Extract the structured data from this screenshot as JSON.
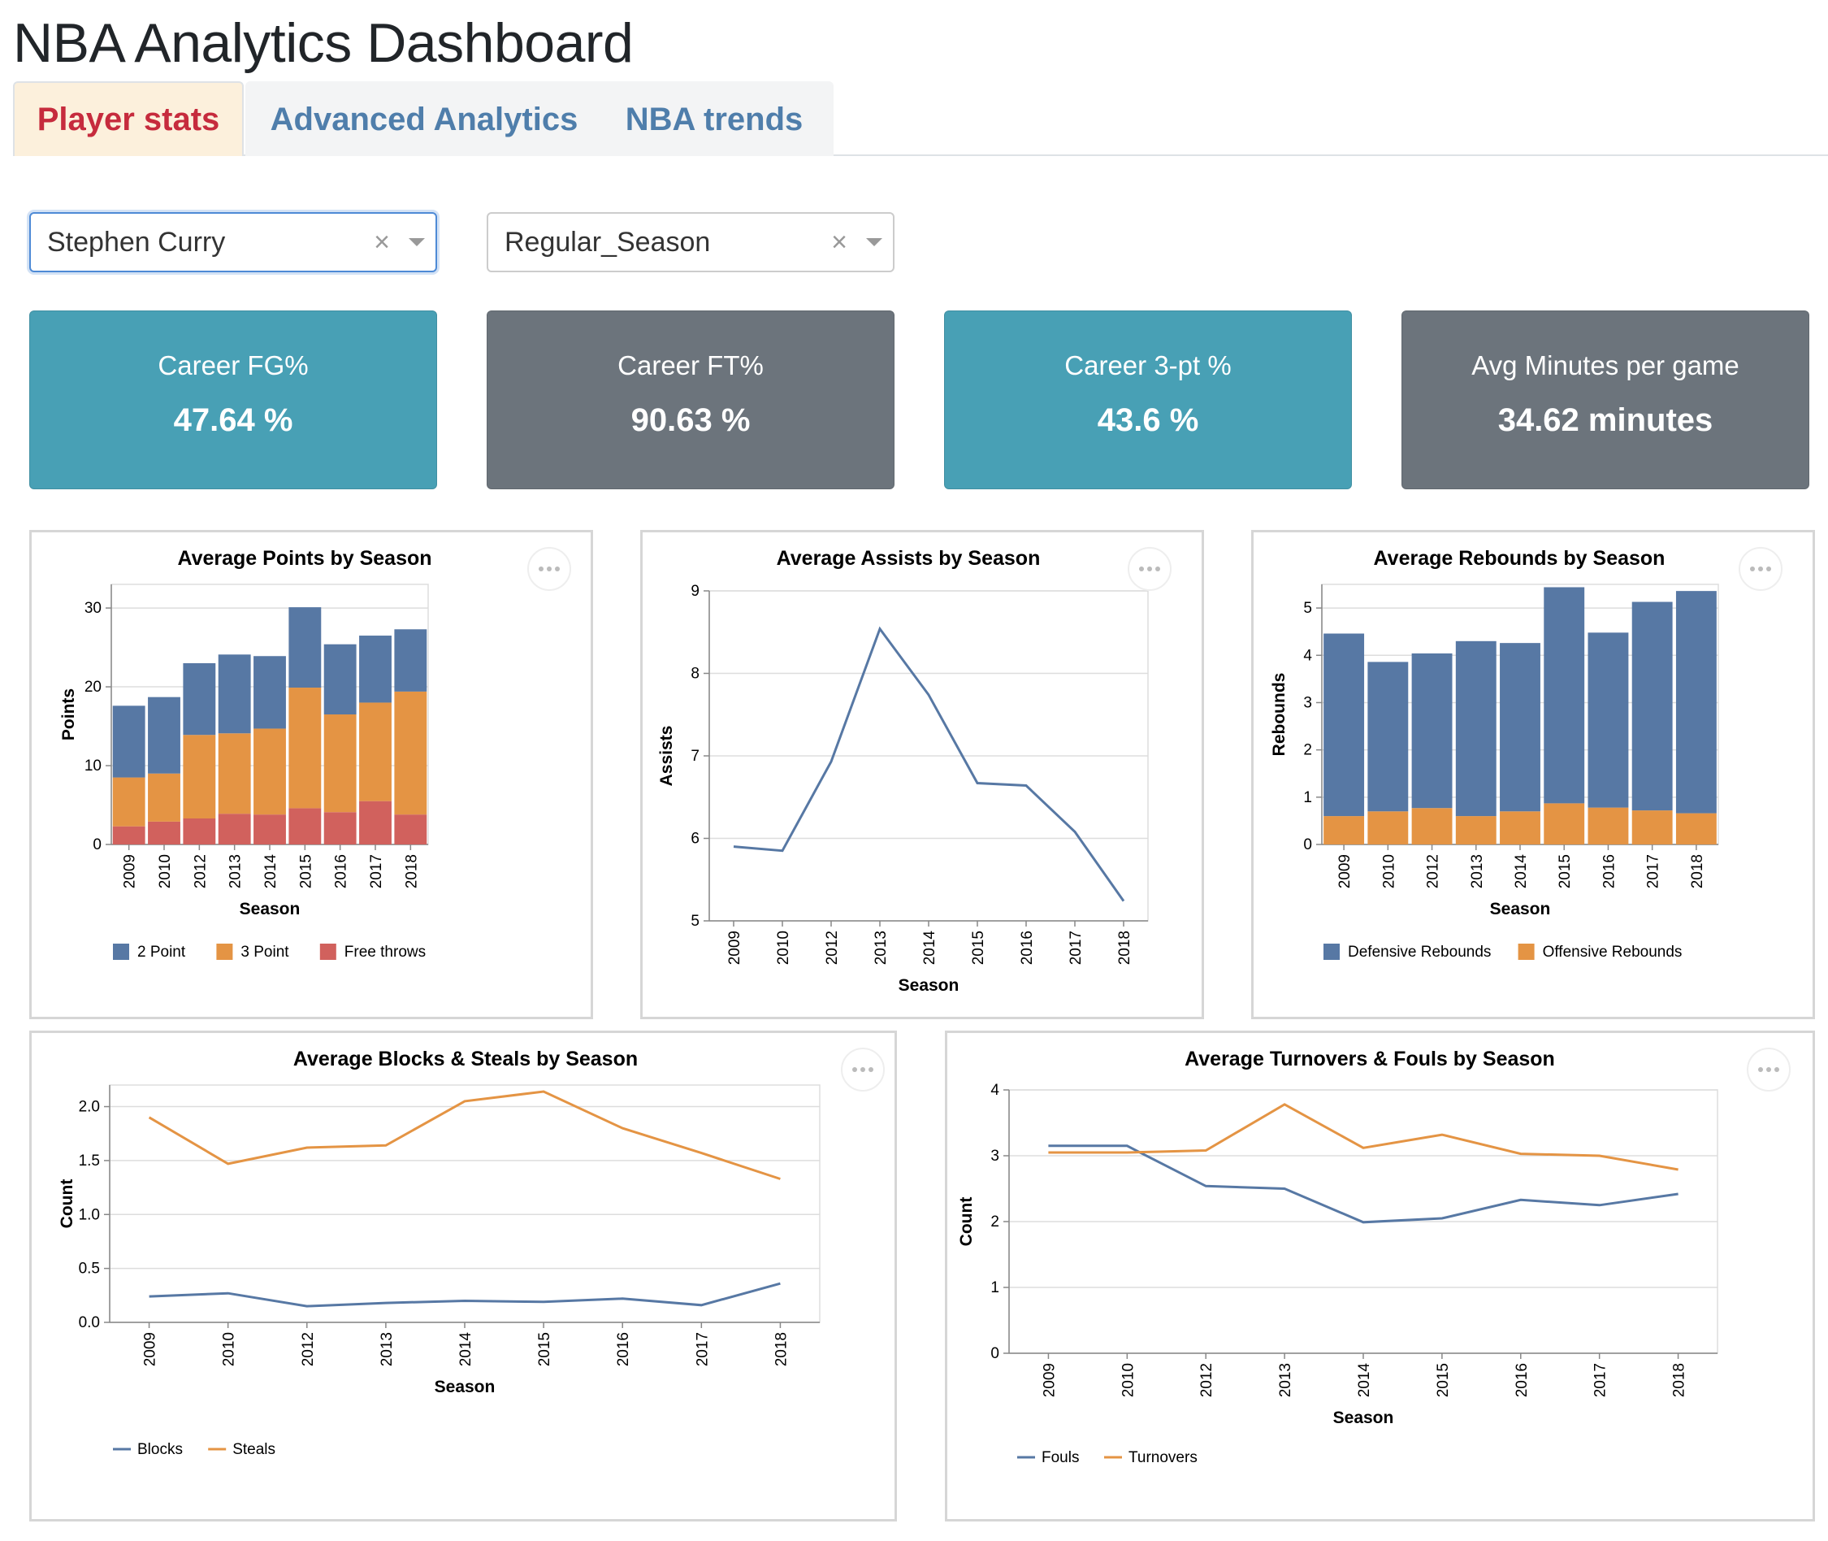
{
  "page_title": "NBA Analytics Dashboard",
  "tabs": [
    {
      "label": "Player stats",
      "active": true
    },
    {
      "label": "Advanced Analytics",
      "active": false
    },
    {
      "label": "NBA trends",
      "active": false
    }
  ],
  "filters": {
    "player": {
      "value": "Stephen Curry",
      "clear_icon": "×"
    },
    "season_type": {
      "value": "Regular_Season",
      "clear_icon": "×"
    }
  },
  "cards": [
    {
      "label": "Career FG%",
      "value": "47.64 %",
      "color": "#48a0b5"
    },
    {
      "label": "Career FT%",
      "value": "90.63 %",
      "color": "#6c747c"
    },
    {
      "label": "Career 3-pt %",
      "value": "43.6 %",
      "color": "#48a0b5"
    },
    {
      "label": "Avg Minutes per game",
      "value": "34.62 minutes",
      "color": "#6c747c"
    }
  ],
  "colors": {
    "blue": "#5778a4",
    "orange": "#e49444",
    "red": "#d1615d"
  },
  "chart_data": [
    {
      "id": "points",
      "type": "bar",
      "stacked": true,
      "title": "Average Points by Season",
      "xlabel": "Season",
      "ylabel": "Points",
      "ylim": [
        0,
        33
      ],
      "yticks": [
        0,
        10,
        20,
        30
      ],
      "grid": true,
      "categories": [
        "2009",
        "2010",
        "2012",
        "2013",
        "2014",
        "2015",
        "2016",
        "2017",
        "2018"
      ],
      "series": [
        {
          "name": "Free throws",
          "color": "#d1615d",
          "values": [
            2.3,
            2.9,
            3.3,
            3.9,
            3.8,
            4.6,
            4.1,
            5.5,
            3.8
          ]
        },
        {
          "name": "3 Point",
          "color": "#e49444",
          "values": [
            6.2,
            6.1,
            10.6,
            10.2,
            10.9,
            15.3,
            12.4,
            12.5,
            15.6
          ]
        },
        {
          "name": "2 Point",
          "color": "#5778a4",
          "values": [
            9.1,
            9.7,
            9.1,
            10.0,
            9.2,
            10.2,
            8.9,
            8.5,
            7.9
          ]
        }
      ],
      "legend": [
        {
          "name": "2 Point",
          "color": "#5778a4"
        },
        {
          "name": "3 Point",
          "color": "#e49444"
        },
        {
          "name": "Free throws",
          "color": "#d1615d"
        }
      ],
      "legend_position": "bottom"
    },
    {
      "id": "assists",
      "type": "line",
      "title": "Average Assists by Season",
      "xlabel": "Season",
      "ylabel": "Assists",
      "ylim": [
        5,
        9
      ],
      "yticks": [
        5,
        6,
        7,
        8,
        9
      ],
      "grid": true,
      "categories": [
        "2009",
        "2010",
        "2012",
        "2013",
        "2014",
        "2015",
        "2016",
        "2017",
        "2018"
      ],
      "series": [
        {
          "color": "#5778a4",
          "values": [
            5.9,
            5.85,
            6.93,
            8.54,
            7.74,
            6.67,
            6.64,
            6.08,
            5.24
          ]
        }
      ]
    },
    {
      "id": "rebounds",
      "type": "bar",
      "stacked": true,
      "title": "Average Rebounds by Season",
      "xlabel": "Season",
      "ylabel": "Rebounds",
      "ylim": [
        0,
        5.5
      ],
      "yticks": [
        0,
        1,
        2,
        3,
        4,
        5
      ],
      "grid": true,
      "categories": [
        "2009",
        "2010",
        "2012",
        "2013",
        "2014",
        "2015",
        "2016",
        "2017",
        "2018"
      ],
      "series": [
        {
          "name": "Offensive Rebounds",
          "color": "#e49444",
          "values": [
            0.6,
            0.7,
            0.77,
            0.6,
            0.7,
            0.87,
            0.78,
            0.72,
            0.66
          ]
        },
        {
          "name": "Defensive Rebounds",
          "color": "#5778a4",
          "values": [
            3.86,
            3.16,
            3.27,
            3.7,
            3.56,
            4.57,
            3.7,
            4.41,
            4.7
          ]
        }
      ],
      "legend": [
        {
          "name": "Defensive Rebounds",
          "color": "#5778a4"
        },
        {
          "name": "Offensive Rebounds",
          "color": "#e49444"
        }
      ],
      "legend_position": "bottom"
    },
    {
      "id": "blocks_steals",
      "type": "line",
      "title": "Average Blocks & Steals by Season",
      "xlabel": "Season",
      "ylabel": "Count",
      "ylim": [
        0,
        2.2
      ],
      "yticks": [
        0.0,
        0.5,
        1.0,
        1.5,
        2.0
      ],
      "ytick_labels": [
        "0.0",
        "0.5",
        "1.0",
        "1.5",
        "2.0"
      ],
      "grid": true,
      "categories": [
        "2009",
        "2010",
        "2012",
        "2013",
        "2014",
        "2015",
        "2016",
        "2017",
        "2018"
      ],
      "series": [
        {
          "name": "Blocks",
          "color": "#5778a4",
          "values": [
            0.24,
            0.27,
            0.15,
            0.18,
            0.2,
            0.19,
            0.22,
            0.16,
            0.36
          ]
        },
        {
          "name": "Steals",
          "color": "#e49444",
          "values": [
            1.9,
            1.47,
            1.62,
            1.64,
            2.05,
            2.14,
            1.8,
            1.57,
            1.33
          ]
        }
      ],
      "legend": [
        {
          "name": "Blocks",
          "color": "#5778a4"
        },
        {
          "name": "Steals",
          "color": "#e49444"
        }
      ],
      "legend_position": "bottom"
    },
    {
      "id": "turnovers_fouls",
      "type": "line",
      "title": "Average Turnovers & Fouls by Season",
      "xlabel": "Season",
      "ylabel": "Count",
      "ylim": [
        0,
        4
      ],
      "yticks": [
        0,
        1,
        2,
        3,
        4
      ],
      "grid": true,
      "categories": [
        "2009",
        "2010",
        "2012",
        "2013",
        "2014",
        "2015",
        "2016",
        "2017",
        "2018"
      ],
      "series": [
        {
          "name": "Fouls",
          "color": "#5778a4",
          "values": [
            3.15,
            3.15,
            2.54,
            2.5,
            1.99,
            2.05,
            2.33,
            2.25,
            2.42
          ]
        },
        {
          "name": "Turnovers",
          "color": "#e49444",
          "values": [
            3.05,
            3.05,
            3.08,
            3.78,
            3.12,
            3.32,
            3.03,
            3.0,
            2.79
          ]
        }
      ],
      "legend": [
        {
          "name": "Fouls",
          "color": "#5778a4"
        },
        {
          "name": "Turnovers",
          "color": "#e49444"
        }
      ],
      "legend_position": "bottom"
    }
  ]
}
